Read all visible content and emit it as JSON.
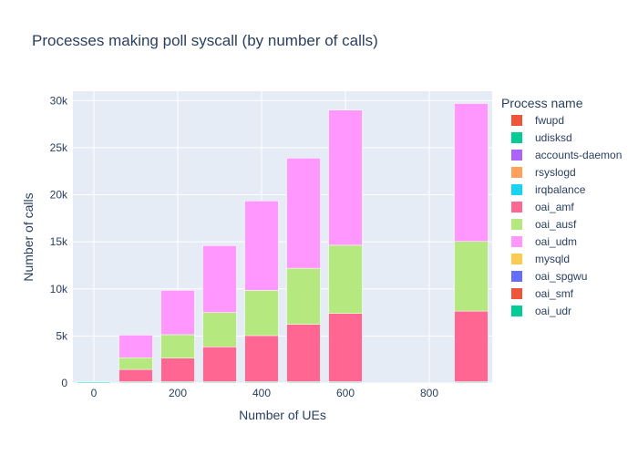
{
  "chart_data": {
    "type": "bar",
    "stacked": true,
    "title": "Processes making poll syscall (by number of calls)",
    "xlabel": "Number of UEs",
    "ylabel": "Number of calls",
    "xlim": [
      -50,
      950
    ],
    "ylim": [
      0,
      31000
    ],
    "x_ticks": [
      0,
      200,
      400,
      600,
      800
    ],
    "y_ticks": [
      0,
      5000,
      10000,
      15000,
      20000,
      25000,
      30000
    ],
    "y_tick_labels": [
      "0",
      "5k",
      "10k",
      "15k",
      "20k",
      "25k",
      "30k"
    ],
    "grid": true,
    "legend_title": "Process name",
    "legend_position": "right",
    "x": [
      0,
      100,
      200,
      300,
      400,
      500,
      600,
      900
    ],
    "series": [
      {
        "name": "fwupd",
        "color": "#EF553B",
        "values": [
          0,
          0,
          0,
          0,
          0,
          0,
          0,
          0
        ]
      },
      {
        "name": "udisksd",
        "color": "#00CC96",
        "values": [
          100,
          80,
          80,
          80,
          80,
          80,
          80,
          80
        ]
      },
      {
        "name": "accounts-daemon",
        "color": "#AB63FA",
        "values": [
          0,
          0,
          0,
          0,
          0,
          0,
          0,
          0
        ]
      },
      {
        "name": "rsyslogd",
        "color": "#FFA15A",
        "values": [
          0,
          0,
          0,
          0,
          0,
          0,
          0,
          0
        ]
      },
      {
        "name": "irqbalance",
        "color": "#19D3F3",
        "values": [
          60,
          60,
          60,
          60,
          60,
          60,
          60,
          60
        ]
      },
      {
        "name": "oai_amf",
        "color": "#FF6692",
        "values": [
          0,
          1300,
          2500,
          3700,
          4900,
          6100,
          7250,
          7500
        ]
      },
      {
        "name": "oai_ausf",
        "color": "#B6E880",
        "values": [
          0,
          1250,
          2500,
          3650,
          4800,
          5950,
          7250,
          7400
        ]
      },
      {
        "name": "oai_udm",
        "color": "#FF97FF",
        "values": [
          0,
          2400,
          4700,
          7100,
          9500,
          11700,
          14350,
          14650
        ]
      },
      {
        "name": "mysqld",
        "color": "#FECB52",
        "values": [
          0,
          0,
          0,
          0,
          0,
          0,
          0,
          0
        ]
      },
      {
        "name": "oai_spgwu",
        "color": "#636EFA",
        "values": [
          0,
          0,
          0,
          0,
          0,
          0,
          0,
          0
        ]
      },
      {
        "name": "oai_smf",
        "color": "#EF553B",
        "values": [
          0,
          0,
          0,
          0,
          0,
          0,
          0,
          0
        ]
      },
      {
        "name": "oai_udr",
        "color": "#00CC96",
        "values": [
          0,
          0,
          0,
          0,
          0,
          0,
          0,
          0
        ]
      }
    ]
  }
}
